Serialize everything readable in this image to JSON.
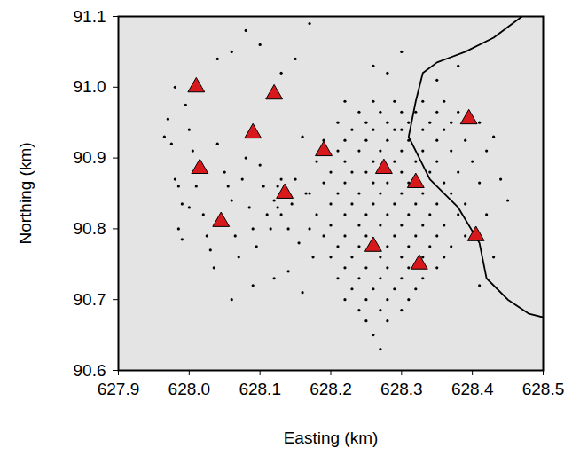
{
  "chart_data": {
    "type": "scatter",
    "x_label": "Easting (km)",
    "y_label": "Northing (km)",
    "xlim": [
      627.9,
      628.5
    ],
    "ylim": [
      90.6,
      91.1
    ],
    "xticks": [
      627.9,
      {
        "value": 628.0,
        "label": "628.0"
      },
      628.1,
      628.2,
      628.3,
      628.4,
      628.5
    ],
    "yticks": [
      90.6,
      90.7,
      90.8,
      90.9,
      {
        "value": 91.0,
        "label": "91.0"
      },
      91.1
    ],
    "grid": false,
    "series": [
      {
        "type": "line",
        "color": "#000000",
        "line_style": "solid",
        "points": [
          [
            628.47,
            91.1
          ],
          [
            628.43,
            91.07
          ],
          [
            628.39,
            91.05
          ],
          [
            628.35,
            91.035
          ],
          [
            628.33,
            91.02
          ],
          [
            628.32,
            90.98
          ],
          [
            628.31,
            90.93
          ],
          [
            628.34,
            90.87
          ],
          [
            628.38,
            90.83
          ],
          [
            628.41,
            90.78
          ],
          [
            628.42,
            90.73
          ],
          [
            628.45,
            90.7
          ],
          [
            628.48,
            90.68
          ],
          [
            628.5,
            90.675
          ]
        ]
      },
      {
        "type": "scatter",
        "color": "#000000",
        "marker": "circle",
        "points": [
          [
            627.965,
            90.93
          ],
          [
            627.97,
            90.955
          ],
          [
            627.975,
            90.92
          ],
          [
            627.98,
            90.87
          ],
          [
            627.985,
            90.86
          ],
          [
            627.99,
            90.835
          ],
          [
            627.985,
            90.8
          ],
          [
            627.99,
            90.785
          ],
          [
            628.0,
            90.94
          ],
          [
            628.005,
            90.91
          ],
          [
            628.01,
            90.86
          ],
          [
            628.0,
            90.83
          ],
          [
            628.02,
            90.82
          ],
          [
            628.025,
            90.79
          ],
          [
            628.03,
            90.77
          ],
          [
            628.035,
            90.745
          ],
          [
            628.04,
            90.92
          ],
          [
            628.05,
            90.88
          ],
          [
            628.055,
            90.86
          ],
          [
            628.06,
            90.84
          ],
          [
            628.065,
            90.79
          ],
          [
            628.07,
            90.76
          ],
          [
            628.075,
            90.87
          ],
          [
            628.08,
            90.9
          ],
          [
            628.085,
            90.83
          ],
          [
            628.09,
            90.8
          ],
          [
            628.095,
            90.775
          ],
          [
            628.1,
            90.89
          ],
          [
            628.105,
            90.86
          ],
          [
            628.11,
            90.82
          ],
          [
            628.115,
            90.8
          ],
          [
            628.12,
            90.84
          ],
          [
            628.125,
            90.86
          ],
          [
            628.13,
            90.87
          ],
          [
            628.125,
            90.83
          ],
          [
            628.13,
            90.82
          ],
          [
            628.14,
            90.8
          ],
          [
            628.145,
            90.835
          ],
          [
            628.15,
            90.87
          ],
          [
            628.155,
            90.78
          ],
          [
            628.16,
            90.93
          ],
          [
            628.165,
            90.85
          ],
          [
            628.17,
            90.8
          ],
          [
            628.175,
            90.76
          ],
          [
            627.98,
            91.0
          ],
          [
            627.995,
            90.975
          ],
          [
            628.04,
            91.04
          ],
          [
            628.06,
            91.05
          ],
          [
            628.08,
            91.08
          ],
          [
            628.1,
            91.06
          ],
          [
            628.13,
            91.02
          ],
          [
            628.15,
            91.04
          ],
          [
            628.17,
            91.09
          ],
          [
            628.12,
            90.73
          ],
          [
            628.16,
            90.71
          ],
          [
            628.14,
            90.74
          ],
          [
            628.06,
            90.7
          ],
          [
            628.09,
            90.72
          ],
          [
            628.22,
            90.98
          ],
          [
            628.26,
            90.98
          ],
          [
            628.29,
            90.98
          ],
          [
            628.33,
            90.98
          ],
          [
            628.36,
            90.98
          ],
          [
            628.24,
            90.965
          ],
          [
            628.27,
            90.965
          ],
          [
            628.3,
            90.965
          ],
          [
            628.32,
            90.965
          ],
          [
            628.35,
            90.965
          ],
          [
            628.38,
            90.965
          ],
          [
            628.21,
            90.95
          ],
          [
            628.25,
            90.95
          ],
          [
            628.28,
            90.95
          ],
          [
            628.31,
            90.95
          ],
          [
            628.34,
            90.95
          ],
          [
            628.37,
            90.95
          ],
          [
            628.41,
            90.95
          ],
          [
            628.23,
            90.94
          ],
          [
            628.26,
            90.94
          ],
          [
            628.29,
            90.94
          ],
          [
            628.3,
            90.94
          ],
          [
            628.33,
            90.94
          ],
          [
            628.36,
            90.94
          ],
          [
            628.19,
            90.925
          ],
          [
            628.22,
            90.925
          ],
          [
            628.25,
            90.925
          ],
          [
            628.28,
            90.925
          ],
          [
            628.31,
            90.925
          ],
          [
            628.35,
            90.925
          ],
          [
            628.39,
            90.925
          ],
          [
            628.21,
            90.91
          ],
          [
            628.24,
            90.91
          ],
          [
            628.27,
            90.91
          ],
          [
            628.3,
            90.91
          ],
          [
            628.33,
            90.91
          ],
          [
            628.37,
            90.91
          ],
          [
            628.42,
            90.91
          ],
          [
            628.18,
            90.895
          ],
          [
            628.22,
            90.895
          ],
          [
            628.26,
            90.895
          ],
          [
            628.29,
            90.895
          ],
          [
            628.32,
            90.895
          ],
          [
            628.35,
            90.895
          ],
          [
            628.4,
            90.895
          ],
          [
            628.2,
            90.88
          ],
          [
            628.23,
            90.88
          ],
          [
            628.25,
            90.88
          ],
          [
            628.3,
            90.88
          ],
          [
            628.34,
            90.88
          ],
          [
            628.38,
            90.88
          ],
          [
            628.19,
            90.865
          ],
          [
            628.22,
            90.865
          ],
          [
            628.26,
            90.865
          ],
          [
            628.28,
            90.865
          ],
          [
            628.31,
            90.865
          ],
          [
            628.36,
            90.865
          ],
          [
            628.41,
            90.865
          ],
          [
            628.17,
            90.85
          ],
          [
            628.21,
            90.85
          ],
          [
            628.24,
            90.85
          ],
          [
            628.27,
            90.85
          ],
          [
            628.3,
            90.85
          ],
          [
            628.33,
            90.85
          ],
          [
            628.37,
            90.85
          ],
          [
            628.2,
            90.835
          ],
          [
            628.23,
            90.835
          ],
          [
            628.26,
            90.835
          ],
          [
            628.29,
            90.835
          ],
          [
            628.32,
            90.835
          ],
          [
            628.35,
            90.835
          ],
          [
            628.39,
            90.835
          ],
          [
            628.18,
            90.82
          ],
          [
            628.22,
            90.82
          ],
          [
            628.25,
            90.82
          ],
          [
            628.28,
            90.82
          ],
          [
            628.31,
            90.82
          ],
          [
            628.34,
            90.82
          ],
          [
            628.38,
            90.82
          ],
          [
            628.42,
            90.82
          ],
          [
            628.2,
            90.805
          ],
          [
            628.24,
            90.805
          ],
          [
            628.27,
            90.805
          ],
          [
            628.3,
            90.805
          ],
          [
            628.33,
            90.805
          ],
          [
            628.36,
            90.805
          ],
          [
            628.19,
            90.79
          ],
          [
            628.22,
            90.79
          ],
          [
            628.25,
            90.79
          ],
          [
            628.29,
            90.79
          ],
          [
            628.32,
            90.79
          ],
          [
            628.35,
            90.79
          ],
          [
            628.39,
            90.79
          ],
          [
            628.21,
            90.775
          ],
          [
            628.24,
            90.775
          ],
          [
            628.28,
            90.775
          ],
          [
            628.31,
            90.775
          ],
          [
            628.34,
            90.775
          ],
          [
            628.37,
            90.775
          ],
          [
            628.2,
            90.76
          ],
          [
            628.23,
            90.76
          ],
          [
            628.27,
            90.76
          ],
          [
            628.3,
            90.76
          ],
          [
            628.33,
            90.76
          ],
          [
            628.36,
            90.76
          ],
          [
            628.22,
            90.745
          ],
          [
            628.25,
            90.745
          ],
          [
            628.28,
            90.745
          ],
          [
            628.31,
            90.745
          ],
          [
            628.35,
            90.745
          ],
          [
            628.21,
            90.73
          ],
          [
            628.24,
            90.73
          ],
          [
            628.27,
            90.73
          ],
          [
            628.3,
            90.73
          ],
          [
            628.33,
            90.73
          ],
          [
            628.23,
            90.715
          ],
          [
            628.26,
            90.715
          ],
          [
            628.29,
            90.715
          ],
          [
            628.32,
            90.715
          ],
          [
            628.22,
            90.7
          ],
          [
            628.25,
            90.7
          ],
          [
            628.28,
            90.7
          ],
          [
            628.31,
            90.7
          ],
          [
            628.24,
            90.685
          ],
          [
            628.27,
            90.685
          ],
          [
            628.3,
            90.685
          ],
          [
            628.25,
            90.67
          ],
          [
            628.28,
            90.67
          ],
          [
            628.26,
            90.65
          ],
          [
            628.27,
            90.63
          ],
          [
            628.28,
            91.02
          ],
          [
            628.3,
            91.05
          ],
          [
            628.26,
            91.03
          ],
          [
            628.35,
            91.01
          ],
          [
            628.38,
            91.03
          ],
          [
            628.43,
            90.93
          ],
          [
            628.44,
            90.87
          ],
          [
            628.45,
            90.84
          ],
          [
            628.43,
            90.76
          ],
          [
            628.41,
            90.72
          ]
        ]
      },
      {
        "type": "scatter",
        "color": "#d7191c",
        "marker": "triangle",
        "points": [
          [
            628.01,
            91.0
          ],
          [
            628.12,
            90.99
          ],
          [
            628.395,
            90.955
          ],
          [
            628.09,
            90.935
          ],
          [
            628.19,
            90.91
          ],
          [
            628.015,
            90.885
          ],
          [
            628.275,
            90.885
          ],
          [
            628.32,
            90.865
          ],
          [
            628.135,
            90.85
          ],
          [
            628.045,
            90.81
          ],
          [
            628.405,
            90.79
          ],
          [
            628.26,
            90.775
          ],
          [
            628.325,
            90.75
          ]
        ]
      }
    ]
  }
}
